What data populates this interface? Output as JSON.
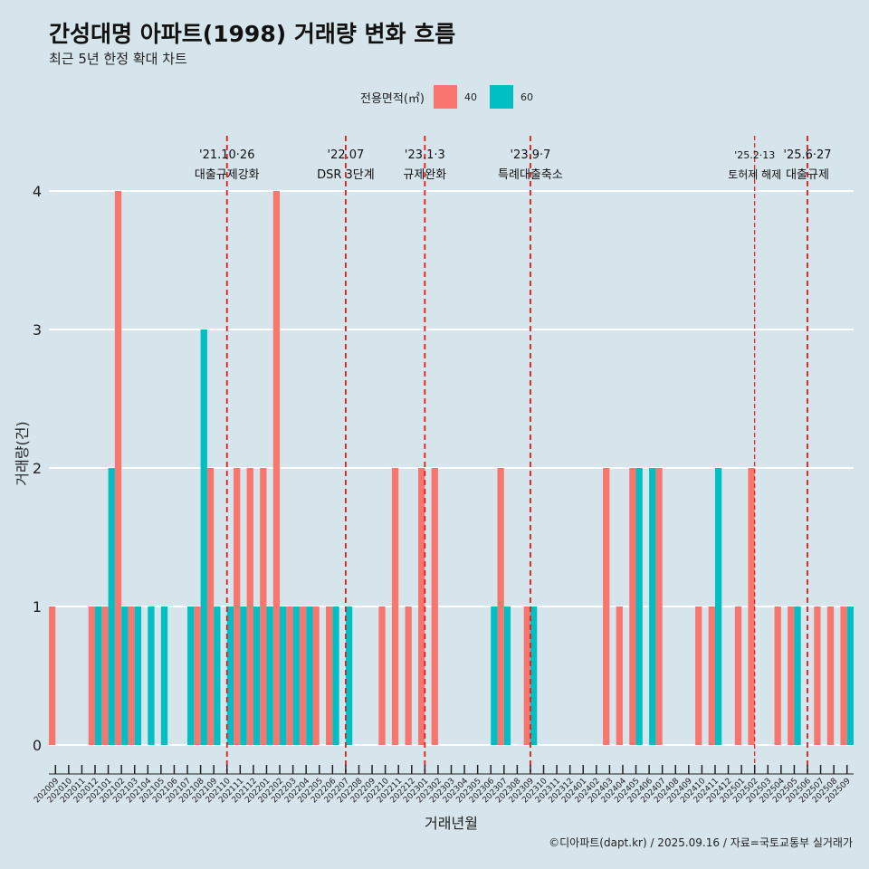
{
  "title": "간성대명 아파트(1998) 거래량 변화 흐름",
  "subtitle": "최근 5년 한정 확대 차트",
  "caption": "©디아파트(dapt.kr) / 2025.09.16 / 자료=국토교통부 실거래가",
  "legend": {
    "title": "전용면적(㎡)",
    "items": [
      {
        "label": "40",
        "color": "#f8766d"
      },
      {
        "label": "60",
        "color": "#00bfc4"
      }
    ]
  },
  "chart_data": {
    "type": "bar",
    "xlabel": "거래년월",
    "ylabel": "거래량(건)",
    "ylim": [
      0,
      4
    ],
    "yticks": [
      0,
      1,
      2,
      3,
      4
    ],
    "grid": true,
    "legend_position": "top",
    "categories": [
      "202009",
      "202010",
      "202011",
      "202012",
      "202101",
      "202102",
      "202103",
      "202104",
      "202105",
      "202106",
      "202107",
      "202108",
      "202109",
      "202110",
      "202111",
      "202112",
      "202201",
      "202202",
      "202203",
      "202204",
      "202205",
      "202206",
      "202207",
      "202208",
      "202209",
      "202210",
      "202211",
      "202212",
      "202301",
      "202302",
      "202303",
      "202304",
      "202305",
      "202306",
      "202307",
      "202308",
      "202309",
      "202310",
      "202311",
      "202312",
      "202401",
      "202402",
      "202403",
      "202404",
      "202405",
      "202406",
      "202407",
      "202408",
      "202409",
      "202410",
      "202411",
      "202412",
      "202501",
      "202502",
      "202503",
      "202504",
      "202505",
      "202506",
      "202507",
      "202508",
      "202509"
    ],
    "series": [
      {
        "name": "40",
        "color": "#f8766d",
        "values": [
          1,
          0,
          0,
          1,
          1,
          4,
          1,
          0,
          0,
          0,
          0,
          1,
          2,
          0,
          2,
          2,
          2,
          4,
          1,
          1,
          1,
          1,
          0,
          0,
          0,
          1,
          2,
          1,
          2,
          2,
          0,
          0,
          0,
          0,
          2,
          0,
          1,
          0,
          0,
          0,
          0,
          0,
          2,
          1,
          2,
          0,
          2,
          0,
          0,
          1,
          1,
          0,
          1,
          2,
          0,
          1,
          1,
          0,
          1,
          1,
          1
        ]
      },
      {
        "name": "60",
        "color": "#00bfc4",
        "values": [
          0,
          0,
          0,
          1,
          2,
          1,
          1,
          1,
          1,
          0,
          1,
          3,
          1,
          1,
          1,
          1,
          1,
          1,
          1,
          1,
          0,
          1,
          1,
          0,
          0,
          0,
          0,
          0,
          0,
          0,
          0,
          0,
          0,
          1,
          1,
          0,
          1,
          0,
          0,
          0,
          0,
          0,
          0,
          0,
          2,
          2,
          0,
          0,
          0,
          0,
          2,
          0,
          0,
          0,
          0,
          0,
          1,
          0,
          0,
          0,
          1
        ]
      }
    ],
    "annotations": [
      {
        "month": "202110",
        "date": "'21.10·26",
        "label": "대출규제강화"
      },
      {
        "month": "202207",
        "date": "'22.07",
        "label": "DSR 3단계"
      },
      {
        "month": "202301",
        "date": "'23.1·3",
        "label": "규제완화"
      },
      {
        "month": "202309",
        "date": "'23.9·7",
        "label": "특례대출축소"
      },
      {
        "month": "202502",
        "date": "'25.2·13",
        "label": "토허제 해제"
      },
      {
        "month": "202506",
        "date": "'25.6·27",
        "label": "대출규제"
      }
    ],
    "annotation_color": "#e41a1c"
  }
}
